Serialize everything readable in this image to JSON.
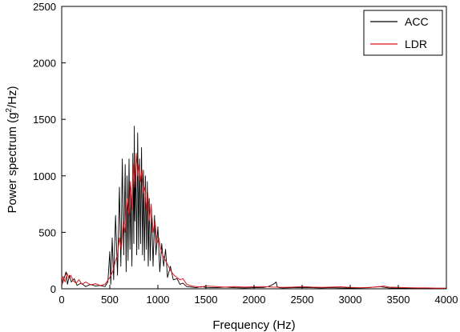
{
  "chart_data": {
    "type": "line",
    "title": "",
    "xlabel": "Frequency (Hz)",
    "ylabel": "Power spectrum (g2/Hz)",
    "ylabel_parts": {
      "pre": "Power spectrum (g",
      "sup": "2",
      "post": "/Hz)"
    },
    "xlim": [
      0,
      4000
    ],
    "ylim": [
      0,
      2500
    ],
    "xticks": [
      0,
      500,
      1000,
      1500,
      2000,
      2500,
      3000,
      3500,
      4000
    ],
    "yticks": [
      0,
      500,
      1000,
      1500,
      2000,
      2500
    ],
    "grid": false,
    "legend_position": "top-right",
    "series": [
      {
        "name": "ACC",
        "color": "#000000",
        "x": [
          0,
          20,
          45,
          60,
          80,
          100,
          130,
          160,
          200,
          250,
          300,
          350,
          400,
          450,
          480,
          500,
          510,
          525,
          540,
          560,
          580,
          600,
          615,
          630,
          645,
          660,
          670,
          680,
          690,
          700,
          710,
          720,
          730,
          740,
          750,
          755,
          760,
          770,
          780,
          790,
          800,
          810,
          820,
          830,
          840,
          850,
          860,
          870,
          880,
          890,
          900,
          910,
          920,
          935,
          950,
          965,
          980,
          1000,
          1020,
          1040,
          1060,
          1080,
          1100,
          1130,
          1160,
          1200,
          1230,
          1260,
          1300,
          1350,
          1400,
          1450,
          1500,
          1600,
          1700,
          1800,
          1900,
          2000,
          2100,
          2150,
          2200,
          2230,
          2240,
          2260,
          2300,
          2400,
          2500,
          2600,
          2700,
          2800,
          2900,
          3000,
          3100,
          3200,
          3300,
          3400,
          3500,
          3600,
          3700,
          3800,
          3900,
          4000
        ],
        "y": [
          30,
          80,
          150,
          40,
          120,
          60,
          90,
          30,
          50,
          20,
          40,
          25,
          30,
          20,
          60,
          330,
          40,
          450,
          80,
          650,
          120,
          900,
          200,
          1150,
          300,
          1100,
          150,
          1000,
          250,
          1150,
          350,
          900,
          200,
          1200,
          400,
          1440,
          600,
          1100,
          300,
          1380,
          350,
          1150,
          400,
          1250,
          300,
          1050,
          250,
          1000,
          350,
          950,
          200,
          800,
          250,
          700,
          200,
          650,
          300,
          550,
          150,
          400,
          200,
          350,
          100,
          200,
          80,
          90,
          40,
          50,
          20,
          15,
          10,
          20,
          12,
          10,
          15,
          10,
          8,
          10,
          12,
          20,
          40,
          60,
          20,
          10,
          8,
          10,
          12,
          10,
          8,
          10,
          8,
          7,
          8,
          10,
          20,
          8,
          6,
          5,
          6,
          5,
          5,
          5
        ]
      },
      {
        "name": "LDR",
        "color": "#e0161b",
        "x": [
          0,
          15,
          35,
          55,
          75,
          95,
          120,
          150,
          180,
          210,
          250,
          300,
          350,
          400,
          450,
          500,
          530,
          560,
          580,
          600,
          620,
          640,
          660,
          680,
          700,
          715,
          730,
          745,
          760,
          775,
          790,
          805,
          820,
          835,
          850,
          865,
          880,
          895,
          910,
          930,
          950,
          970,
          990,
          1010,
          1030,
          1050,
          1080,
          1110,
          1140,
          1170,
          1200,
          1230,
          1260,
          1300,
          1350,
          1400,
          1450,
          1500,
          1600,
          1700,
          1800,
          1900,
          2000,
          2100,
          2200,
          2300,
          2400,
          2500,
          2600,
          2700,
          2800,
          2900,
          3000,
          3100,
          3200,
          3300,
          3350,
          3400,
          3500,
          3600,
          3700,
          3800,
          3900,
          4000
        ],
        "y": [
          40,
          110,
          60,
          140,
          90,
          120,
          70,
          50,
          80,
          40,
          60,
          35,
          45,
          30,
          40,
          100,
          150,
          250,
          300,
          450,
          350,
          600,
          500,
          800,
          650,
          950,
          700,
          1100,
          900,
          1200,
          1000,
          1100,
          950,
          1050,
          850,
          900,
          700,
          850,
          600,
          750,
          500,
          600,
          400,
          450,
          350,
          300,
          250,
          200,
          150,
          120,
          100,
          80,
          90,
          40,
          25,
          20,
          15,
          25,
          20,
          15,
          20,
          15,
          18,
          20,
          15,
          12,
          15,
          20,
          15,
          12,
          15,
          18,
          12,
          10,
          12,
          18,
          25,
          15,
          12,
          10,
          8,
          8,
          6,
          5
        ]
      }
    ]
  }
}
